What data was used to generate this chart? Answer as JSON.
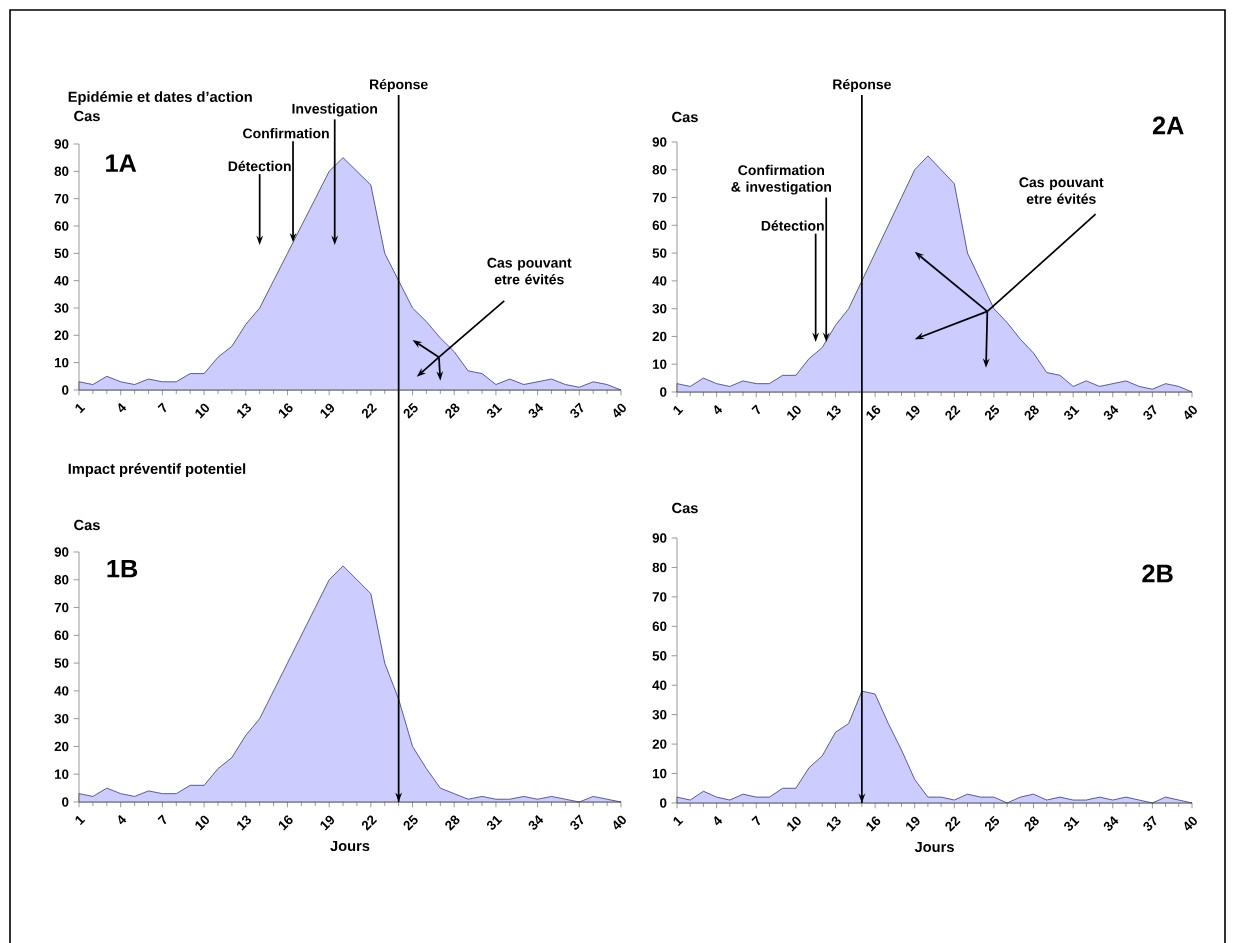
{
  "chart_data": [
    {
      "type": "area",
      "title": "Epidémie et dates d’action",
      "ylabel": "Cas",
      "color": "#ccccff",
      "x": [
        1,
        2,
        3,
        4,
        5,
        6,
        7,
        8,
        9,
        10,
        11,
        12,
        13,
        14,
        15,
        16,
        17,
        18,
        19,
        20,
        21,
        22,
        23,
        24,
        25,
        26,
        27,
        28,
        29,
        30,
        31,
        32,
        33,
        34,
        35,
        36,
        37,
        38,
        39,
        40
      ],
      "values": [
        3,
        2,
        5,
        3,
        2,
        4,
        3,
        3,
        6,
        6,
        12,
        16,
        24,
        30,
        40,
        50,
        60,
        70,
        80,
        85,
        80,
        75,
        50,
        40,
        30,
        25,
        19,
        14,
        7,
        6,
        2,
        4,
        2,
        3,
        4,
        2,
        1,
        3,
        2,
        0
      ],
      "xlim": [
        1,
        40
      ],
      "xticks": [
        1,
        4,
        7,
        10,
        13,
        16,
        19,
        22,
        25,
        28,
        31,
        34,
        37,
        40
      ],
      "ylim": [
        0,
        90
      ],
      "yticks": [
        0,
        10,
        20,
        30,
        40,
        50,
        60,
        70,
        80,
        90
      ],
      "ref_lines": [
        {
          "axis": "x",
          "value": 24,
          "label": "Réponse"
        }
      ],
      "annotations": [
        "1A",
        "Détection",
        {
          "text": "Confirmation",
          "x": 16.4,
          "y": 54
        },
        "Investigation",
        "Cas pouvant etre évités"
      ]
    },
    {
      "type": "area",
      "ylabel": "Cas",
      "color": "#ccccff",
      "x": [
        1,
        2,
        3,
        4,
        5,
        6,
        7,
        8,
        9,
        10,
        11,
        12,
        13,
        14,
        15,
        16,
        17,
        18,
        19,
        20,
        21,
        22,
        23,
        24,
        25,
        26,
        27,
        28,
        29,
        30,
        31,
        32,
        33,
        34,
        35,
        36,
        37,
        38,
        39,
        40
      ],
      "values": [
        3,
        2,
        5,
        3,
        2,
        4,
        3,
        3,
        6,
        6,
        12,
        16,
        24,
        30,
        40,
        50,
        60,
        70,
        80,
        85,
        80,
        75,
        50,
        40,
        30,
        25,
        19,
        14,
        7,
        6,
        2,
        4,
        2,
        3,
        4,
        2,
        1,
        3,
        2,
        0
      ],
      "xlim": [
        1,
        40
      ],
      "xticks": [
        1,
        4,
        7,
        10,
        13,
        16,
        19,
        22,
        25,
        28,
        31,
        34,
        37,
        40
      ],
      "ylim": [
        0,
        90
      ],
      "yticks": [
        0,
        10,
        20,
        30,
        40,
        50,
        60,
        70,
        80,
        90
      ],
      "ref_lines": [
        {
          "axis": "x",
          "value": 15,
          "label": "Réponse"
        }
      ],
      "annotations": [
        "2A",
        "Détection",
        {
          "text": "Confirmation & investigation",
          "x": 12.3,
          "y": 18
        },
        "Cas pouvant etre évités"
      ]
    },
    {
      "type": "area",
      "title": "Impact préventif potentiel",
      "ylabel": "Cas",
      "xlabel": "Jours",
      "color": "#ccccff",
      "x": [
        1,
        2,
        3,
        4,
        5,
        6,
        7,
        8,
        9,
        10,
        11,
        12,
        13,
        14,
        15,
        16,
        17,
        18,
        19,
        20,
        21,
        22,
        23,
        24,
        25,
        26,
        27,
        28,
        29,
        30,
        31,
        32,
        33,
        34,
        35,
        36,
        37,
        38,
        39,
        40
      ],
      "values": [
        3,
        2,
        5,
        3,
        2,
        4,
        3,
        3,
        6,
        6,
        12,
        16,
        24,
        30,
        40,
        50,
        60,
        70,
        80,
        85,
        80,
        75,
        50,
        37,
        20,
        12,
        5,
        3,
        1,
        2,
        1,
        1,
        2,
        1,
        2,
        1,
        0,
        2,
        1,
        0
      ],
      "xlim": [
        1,
        40
      ],
      "xticks": [
        1,
        4,
        7,
        10,
        13,
        16,
        19,
        22,
        25,
        28,
        31,
        34,
        37,
        40
      ],
      "ylim": [
        0,
        90
      ],
      "yticks": [
        0,
        10,
        20,
        30,
        40,
        50,
        60,
        70,
        80,
        90
      ],
      "ref_lines": [
        {
          "axis": "x",
          "value": 24
        }
      ],
      "annotations": [
        "1B"
      ]
    },
    {
      "type": "area",
      "ylabel": "Cas",
      "xlabel": "Jours",
      "color": "#ccccff",
      "x": [
        1,
        2,
        3,
        4,
        5,
        6,
        7,
        8,
        9,
        10,
        11,
        12,
        13,
        14,
        15,
        16,
        17,
        18,
        19,
        20,
        21,
        22,
        23,
        24,
        25,
        26,
        27,
        28,
        29,
        30,
        31,
        32,
        33,
        34,
        35,
        36,
        37,
        38,
        39,
        40
      ],
      "values": [
        2,
        1,
        4,
        2,
        1,
        3,
        2,
        2,
        5,
        5,
        12,
        16,
        24,
        27,
        38,
        37,
        27,
        18,
        8,
        2,
        2,
        1,
        3,
        2,
        2,
        0,
        2,
        3,
        1,
        2,
        1,
        1,
        2,
        1,
        2,
        1,
        0,
        2,
        1,
        0
      ],
      "xlim": [
        1,
        40
      ],
      "xticks": [
        1,
        4,
        7,
        10,
        13,
        16,
        19,
        22,
        25,
        28,
        31,
        34,
        37,
        40
      ],
      "ylim": [
        0,
        90
      ],
      "yticks": [
        0,
        10,
        20,
        30,
        40,
        50,
        60,
        70,
        80,
        90
      ],
      "ref_lines": [
        {
          "axis": "x",
          "value": 15
        }
      ],
      "annotations": [
        "2B"
      ]
    }
  ]
}
